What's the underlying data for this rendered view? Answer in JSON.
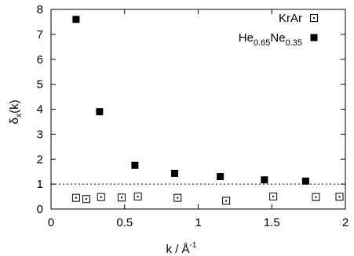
{
  "chart_data": {
    "type": "scatter",
    "xlabel": "k / Å",
    "xlabel_superscript": "-1",
    "ylabel": "δ",
    "ylabel_subscript": "x",
    "ylabel_suffix": "(k)",
    "xlim": [
      0,
      2
    ],
    "ylim": [
      0,
      8
    ],
    "x_ticks": [
      "0",
      "0.5",
      "1",
      "1.5",
      "2"
    ],
    "y_ticks": [
      "0",
      "1",
      "2",
      "3",
      "4",
      "5",
      "6",
      "7",
      "8"
    ],
    "legend_position": "top-right",
    "reference_line": {
      "y": 1,
      "style": "dotted"
    },
    "series": [
      {
        "name": "KrAr",
        "marker": "open-square-dot",
        "x": [
          0.17,
          0.24,
          0.34,
          0.48,
          0.59,
          0.86,
          1.19,
          1.51,
          1.8,
          1.96
        ],
        "y": [
          0.45,
          0.4,
          0.48,
          0.46,
          0.5,
          0.45,
          0.33,
          0.5,
          0.48,
          0.49
        ]
      },
      {
        "name": "He",
        "name_sub1": "0.65",
        "name_mid": "Ne",
        "name_sub2": "0.35",
        "marker": "filled-square",
        "x": [
          0.17,
          0.33,
          0.57,
          0.84,
          1.15,
          1.45,
          1.73
        ],
        "y": [
          7.6,
          3.9,
          1.75,
          1.43,
          1.3,
          1.17,
          1.12
        ]
      }
    ],
    "colors": {
      "markers": "#000000",
      "axis": "#000000"
    }
  }
}
